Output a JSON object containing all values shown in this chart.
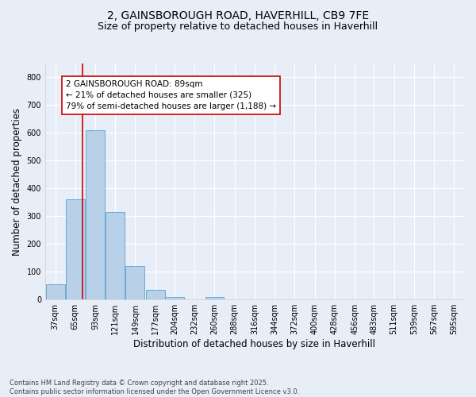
{
  "title1": "2, GAINSBOROUGH ROAD, HAVERHILL, CB9 7FE",
  "title2": "Size of property relative to detached houses in Haverhill",
  "xlabel": "Distribution of detached houses by size in Haverhill",
  "ylabel": "Number of detached properties",
  "footnote1": "Contains HM Land Registry data © Crown copyright and database right 2025.",
  "footnote2": "Contains public sector information licensed under the Open Government Licence v3.0.",
  "bins": [
    37,
    65,
    93,
    121,
    149,
    177,
    204,
    232,
    260,
    288,
    316,
    344,
    372,
    400,
    428,
    456,
    483,
    511,
    539,
    567,
    595
  ],
  "bin_labels": [
    "37sqm",
    "65sqm",
    "93sqm",
    "121sqm",
    "149sqm",
    "177sqm",
    "204sqm",
    "232sqm",
    "260sqm",
    "288sqm",
    "316sqm",
    "344sqm",
    "372sqm",
    "400sqm",
    "428sqm",
    "456sqm",
    "483sqm",
    "511sqm",
    "539sqm",
    "567sqm",
    "595sqm"
  ],
  "counts": [
    55,
    360,
    610,
    315,
    120,
    35,
    8,
    0,
    8,
    0,
    0,
    0,
    0,
    0,
    0,
    0,
    0,
    0,
    0,
    0
  ],
  "bar_color": "#b8d0e8",
  "bar_edge_color": "#6aaad4",
  "property_size": 89,
  "property_line_color": "#cc0000",
  "annotation_text": "2 GAINSBOROUGH ROAD: 89sqm\n← 21% of detached houses are smaller (325)\n79% of semi-detached houses are larger (1,188) →",
  "annotation_box_color": "#ffffff",
  "annotation_box_edge_color": "#cc0000",
  "ylim": [
    0,
    850
  ],
  "yticks": [
    0,
    100,
    200,
    300,
    400,
    500,
    600,
    700,
    800
  ],
  "background_color": "#e8eef8",
  "plot_background_color": "#e8eef8",
  "grid_color": "#ffffff",
  "title_fontsize": 10,
  "subtitle_fontsize": 9,
  "axis_label_fontsize": 8.5,
  "tick_fontsize": 7,
  "annotation_fontsize": 7.5
}
